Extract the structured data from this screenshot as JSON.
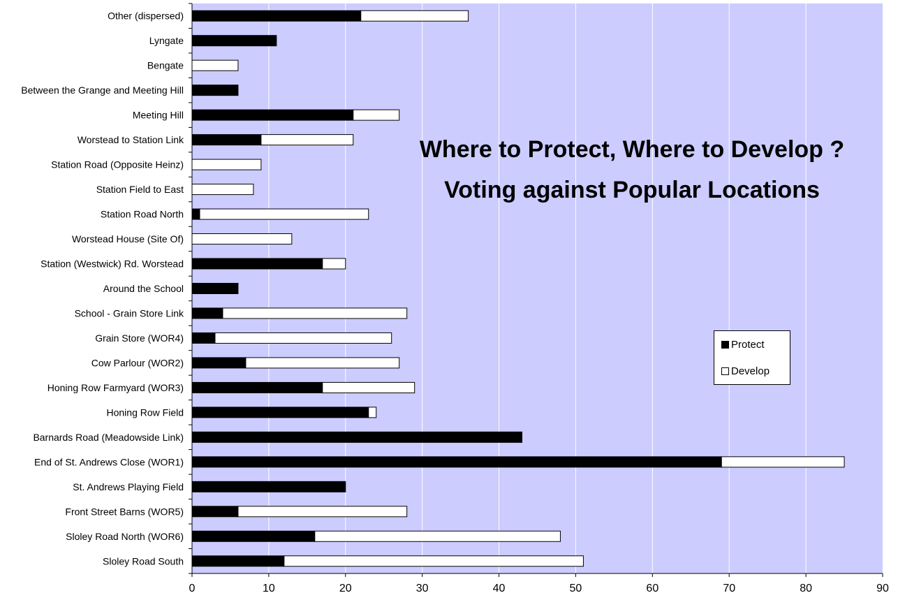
{
  "chart_data": {
    "type": "bar",
    "orientation": "horizontal",
    "stacked": true,
    "title": "Where to Protect, Where to Develop ?",
    "subtitle": "Voting against Popular Locations",
    "categories": [
      "Other (dispersed)",
      "Lyngate",
      "Bengate",
      "Between the Grange and Meeting Hill",
      "Meeting Hill",
      "Worstead to Station Link",
      "Station Road (Opposite Heinz)",
      "Station Field to East",
      "Station Road North",
      "Worstead House (Site Of)",
      "Station (Westwick) Rd. Worstead",
      "Around the School",
      "School - Grain Store Link",
      "Grain Store (WOR4)",
      "Cow Parlour (WOR2)",
      "Honing Row Farmyard (WOR3)",
      "Honing Row Field",
      "Barnards Road (Meadowside Link)",
      "End of St. Andrews Close (WOR1)",
      "St. Andrews Playing Field",
      "Front Street Barns (WOR5)",
      "Sloley Road North (WOR6)",
      "Sloley Road South"
    ],
    "series": [
      {
        "name": "Protect",
        "color": "#000000",
        "values": [
          22,
          11,
          0,
          6,
          21,
          9,
          0,
          0,
          1,
          0,
          17,
          6,
          4,
          3,
          7,
          17,
          23,
          43,
          69,
          20,
          6,
          16,
          12
        ]
      },
      {
        "name": "Develop",
        "color": "#ffffff",
        "values": [
          14,
          0,
          6,
          0,
          6,
          12,
          9,
          8,
          22,
          13,
          3,
          0,
          24,
          23,
          20,
          12,
          1,
          0,
          16,
          0,
          22,
          32,
          39
        ]
      }
    ],
    "xlim": [
      0,
      90
    ],
    "x_ticks": [
      "0",
      "10",
      "20",
      "30",
      "40",
      "50",
      "60",
      "70",
      "80",
      "90"
    ],
    "xlabel": "",
    "ylabel": "",
    "grid": true,
    "plot_background": "#ccccff",
    "legend_position": "right"
  }
}
